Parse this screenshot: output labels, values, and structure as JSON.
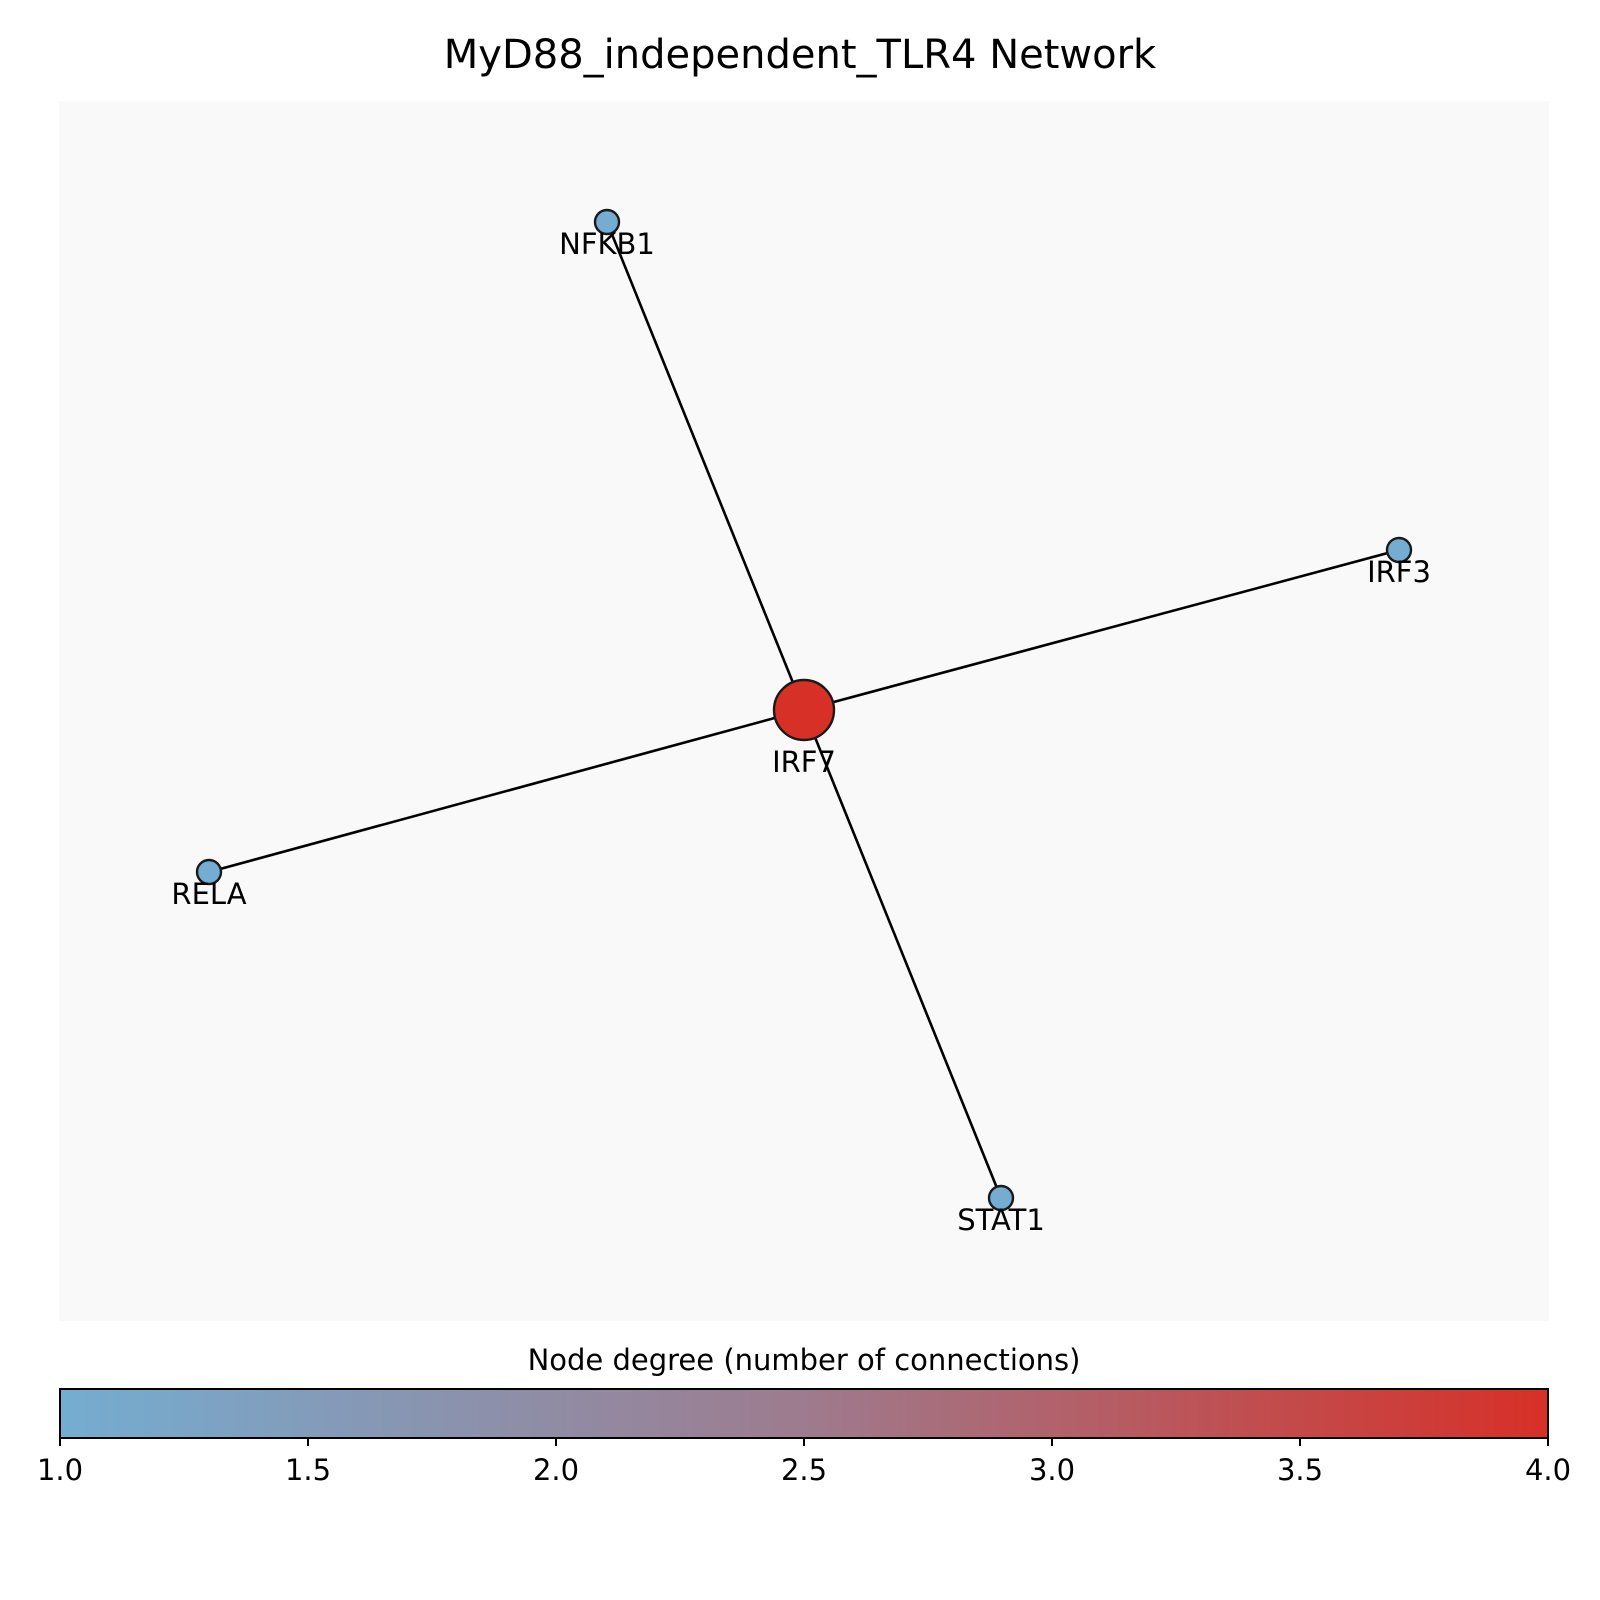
{
  "title": "MyD88_independent_TLR4 Network",
  "nodes": [
    {
      "id": "IRF7",
      "label": "IRF7",
      "degree": 4,
      "color": "#d73027"
    },
    {
      "id": "NFKB1",
      "label": "NFKB1",
      "degree": 1,
      "color": "#74add1"
    },
    {
      "id": "IRF3",
      "label": "IRF3",
      "degree": 1,
      "color": "#74add1"
    },
    {
      "id": "RELA",
      "label": "RELA",
      "degree": 1,
      "color": "#74add1"
    },
    {
      "id": "STAT1",
      "label": "STAT1",
      "degree": 1,
      "color": "#74add1"
    }
  ],
  "edges": [
    {
      "source": "IRF7",
      "target": "NFKB1"
    },
    {
      "source": "IRF7",
      "target": "IRF3"
    },
    {
      "source": "IRF7",
      "target": "RELA"
    },
    {
      "source": "IRF7",
      "target": "STAT1"
    }
  ],
  "colorbar": {
    "label": "Node degree (number of connections)",
    "min": 1.0,
    "max": 4.0,
    "ticks": [
      "1.0",
      "1.5",
      "2.0",
      "2.5",
      "3.0",
      "3.5",
      "4.0"
    ],
    "color_low": "#74add1",
    "color_mid": "#9e7b8e",
    "color_high": "#d73027"
  },
  "panel_background": "#f9f9f9"
}
